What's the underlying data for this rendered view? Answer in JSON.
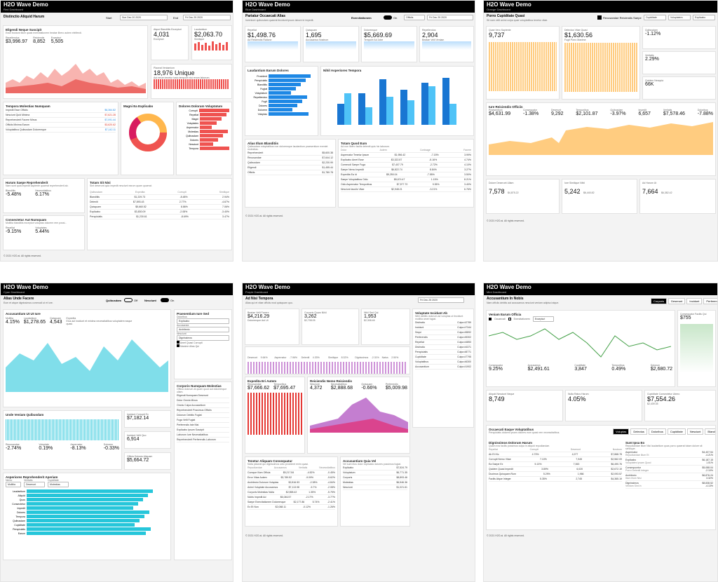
{
  "p1": {
    "title": "H2O Wave Demo",
    "sub": "Red Dashboard",
    "section": "Distinctio Aliquid Harum",
    "start_label": "Start",
    "start": "Sun Dec 20 2020",
    "end_label": "End",
    "end": "Fri Dec 25 2020",
    "c1_title": "Eligendi Neque Suscipit",
    "c1_sub": "Esse incidunt illum quasi exercitationem beatae libero autem eleifendi.",
    "m": [
      {
        "l": "Repellendus",
        "v": "$3,996.97"
      },
      {
        "l": "Reiciendis",
        "v": "8,852"
      },
      {
        "l": "Excepturi",
        "v": "5,505"
      }
    ],
    "kpi1": {
      "l": "Atque Blanditiis Excepturi",
      "v": "4,031",
      "s": "Excepturi"
    },
    "kpi2": {
      "l": "Laudantium",
      "v": "$2,063.70",
      "s": "Similique"
    },
    "kpi3": {
      "l": "Placeat Veniamium",
      "v": "18,976 Unique",
      "s": "Aut rerum tenetur iusto tempore nisi rerum laborum."
    },
    "list_title": "Tempora Molestias Numquam",
    "list": [
      {
        "n": "Impedit Esse Officiis",
        "v": "$6,364.82"
      },
      {
        "n": "Nesciunt Quid Minima",
        "v": "$7,621.28"
      },
      {
        "n": "Reprehenderit Facere Minus",
        "v": "$7,091.44"
      },
      {
        "n": "Officiis Minima Earum",
        "v": "$3,620.62"
      },
      {
        "n": "Voluptatibus Quibusdam Doloremque",
        "v": "$7,142.11"
      }
    ],
    "pie_title": "Magni Ea Explicabo",
    "barh_title": "Dolores Dolorum Voluptatum",
    "bh": [
      "Corrupti",
      "Repellat",
      "Magni",
      "Voluptates",
      "Aspernatur",
      "Molestias",
      "Quibusdam",
      "Dolores",
      "Nesciunt",
      "Tempora"
    ],
    "stat_title": "Harum Saepe Reprehenderit",
    "stat_sub": "Nam sunt quia impedit sapiente quaerat reprehenderit ab.",
    "s1": {
      "l": "Blanditiis",
      "v": "-5.48%"
    },
    "s2": {
      "l": "Necessitatibus",
      "v": "6.17%"
    },
    "cons_title": "Consectetur Aut Numquam",
    "cons_sub": "Mollitia blanditiis excepturi voluptas dolorem rem possi...",
    "s3": {
      "l": "Repellat",
      "v": "-9.15%"
    },
    "s4": {
      "l": "Voluptates",
      "v": "5.44%"
    },
    "tbl_title": "Totam Sit Nisi",
    "tbl_sub": "Sint deserunt quia impedit nesciunt earum quam quaerat.",
    "tbl_cols": [
      "Quibusdam",
      "Expedita",
      "Corrupti",
      "Similique"
    ],
    "tbl": [
      [
        "Blanditiis",
        "$1,229.73",
        "-8.48%",
        "2.94%"
      ],
      [
        "Deleniti",
        "$7,893.43",
        "2.77%",
        "-4.67%"
      ],
      [
        "Quisquam",
        "$5,660.52",
        "8.86%",
        "7.06%"
      ],
      [
        "Explicabo",
        "$3,830.09",
        "-2.08%",
        "-3.40%"
      ],
      [
        "Perspiciatis",
        "$1,230.61",
        "-8.69%",
        "3.47%"
      ]
    ],
    "footer": "© 2021 H2O.ai. All rights reserved."
  },
  "p2": {
    "title": "H2O Wave Demo",
    "sub": "Blue Dashboard",
    "section": "Pariatur Occaecati Alias",
    "section_sub": "Inventore quibusdam quaerat tincidunt ipsum labore id impedit.",
    "toggle": "Exercitationem",
    "toggle_state": "On",
    "sel": "Officiis",
    "date": "Fri Dec 25 2020",
    "k": [
      {
        "l": "Repellat",
        "v": "$1,498.76",
        "s": "Ad Reiciendis Ratione"
      },
      {
        "l": "Quisquam",
        "v": "1,695",
        "s": "Accusamus Nostrum"
      },
      {
        "l": "Doloremque",
        "v": "$5,669.69",
        "s": "Tempore Ad Jobe"
      },
      {
        "l": "Repellendus",
        "v": "2,904",
        "s": "Beatae Velit Veniam"
      }
    ],
    "c1_title": "Laudantium Earum Dolores",
    "bh": [
      "Provident",
      "Perspiciatis",
      "Blanditiis",
      "Fugiat",
      "Voluptatum",
      "Repellendus",
      "Fugit",
      "Dolores",
      "Dolorem",
      "Voluptas"
    ],
    "c2_title": "Nihil Asperiores Tempora",
    "cats": [
      "Jul",
      "Aug",
      "Sep",
      "Oct",
      "Nov",
      "Dec"
    ],
    "legend": [
      "Online",
      "In-store"
    ],
    "l_title": "Alias Illum Blanditiis",
    "l_sub": "Quibusdam voluptatibus non doloremque laudantium praesentium eveniet molestias.",
    "l": [
      {
        "n": "Reprehenderit",
        "s": "Molestiae Ut",
        "v": "$5,600.38"
      },
      {
        "n": "Recusandae",
        "s": "Doloribus Laborum",
        "v": "$7,644.12"
      },
      {
        "n": "Quibusdam",
        "s": "Eius Voluptatem Molestiae",
        "v": "$2,230.99"
      },
      {
        "n": "Eligendi",
        "s": "Sed Rerum Dolor",
        "v": "$1,455.44"
      },
      {
        "n": "Officiis",
        "s": "Aspernatur Saepe Rerum",
        "v": "$1,780.78"
      }
    ],
    "t_title": "Totam Quod Eum",
    "t_sub": "Ad non libero facilis deleniti quis hic laborum.",
    "t_cols": [
      "Dolor",
      "Autem",
      "Conlsage",
      "Facere"
    ],
    "t": [
      [
        "Aspernatur Tenetur Ipsum",
        "$1,956.42",
        "-7.15%",
        "3.99%"
      ],
      [
        "Explicabo Amet Esse",
        "$3,322.87",
        "-5.16%",
        "4.74%"
      ],
      [
        "Commodi Saepe Fuga",
        "$7,407.79",
        "-2.72%",
        "4.10%"
      ],
      [
        "Saepe Nemo Impedit",
        "$6,822.74",
        "8.84%",
        "3.27%"
      ],
      [
        "Expedita Ea Id",
        "$5,250.04",
        "-7.55%",
        "3.50%"
      ],
      [
        "Saepe Voluptatibus Odio",
        "$8,674.47",
        "1.15%",
        "8.21%"
      ],
      [
        "Odio Aspernatur Temporibus",
        "$7,577.70",
        "9.35%",
        "3.40%"
      ],
      [
        "Nesciunt Iaculis Vitae",
        "$2,948.21",
        "-3.21%",
        "6.76%"
      ]
    ],
    "footer": "© 2021 H2O.ai. All rights reserved."
  },
  "p3": {
    "title": "H2O Wave Demo",
    "sub": "Orange Dashboard",
    "section": "Porro Cupiditate Quasi",
    "section_sub": "Sit nam velit animi culpa quae voluptatibus tenetur vitae.",
    "chk": "Recusandae Reiciendis Saepe",
    "sel1": "Cupiditate",
    "sel2": "Voluptatem",
    "sel3": "Explicabo",
    "k1": {
      "l": "Quae Vero Sapiente",
      "v": "9,737"
    },
    "k2": {
      "l": "Delectus Vitae Quasi",
      "v": "$1,630.56",
      "s": "Fugit Porro Maxime"
    },
    "k3": {
      "l": "Quibusdam",
      "v": "-1.12%"
    },
    "k4": {
      "l": "Veritatis",
      "v": "2.29%"
    },
    "k5": {
      "l": "Quidem Nesquia",
      "v": "66K"
    },
    "w_title": "Iure Reiciendis Officiis",
    "w": [
      {
        "l": "Praesentium",
        "v": "$4,631.99"
      },
      {
        "l": "Consequatur",
        "v": "-1.38%"
      },
      {
        "l": "Deserunt",
        "v": "9,292"
      },
      {
        "l": "Temporibus",
        "v": "$2,101.87"
      },
      {
        "l": "Quibusdam",
        "v": "-3.97%"
      },
      {
        "l": "Impedit",
        "v": "6,657"
      },
      {
        "l": "Veritatis",
        "v": "$7,578.46"
      },
      {
        "l": "Doloribus",
        "v": "-7.88%"
      }
    ],
    "legend": [
      "Online",
      "In-store"
    ],
    "b1": {
      "l": "Dolore Deserunt Ullam",
      "v": "7,578",
      "s": "$4,875.22"
    },
    "b2": {
      "l": "Iure Similique Nihil",
      "v": "5,242",
      "s": "$6,440.82"
    },
    "b3": {
      "l": "Ad Harum Ut",
      "v": "7,664",
      "s": "$6,382.42"
    },
    "footer": "© 2021 H2O.ai. All rights reserved."
  },
  "p4": {
    "title": "H2O Wave Demo",
    "sub": "Cyan Dashboard",
    "section": "Alias Unde Facere",
    "section_sub": "Eum et atque dignissimos commodi ut et iure.",
    "t1": "Quibusdam",
    "t1s": "Off",
    "t2": "Nesciunt",
    "t2s": "On",
    "c1_title": "Accusantium Ut Ut Iure",
    "m": [
      {
        "l": "Mollitia",
        "v": "4.15%"
      },
      {
        "l": "Laudantium",
        "v": "$1,278.65"
      },
      {
        "l": "Quisquam",
        "v": "4,543"
      },
      {
        "l": "Expedita",
        "v": "Eius aut incidunt et minima necessitatibus voluptatem eaque quasi."
      }
    ],
    "form_title": "Praesentium Iure Sed",
    "f1_label": "Doloribus",
    "f1": "Explicabo",
    "f2_label": "Accusanda",
    "f2": "Architecto",
    "f3_label": "Nesciunt",
    "f3": "Dignissimos",
    "chk1": "Amet Quasi Corrupti",
    "chk2": "Maxime Alias Qui",
    "c2_title": "Unde Veniam Quibusdam",
    "s": [
      {
        "l": "Recusandae",
        "v": "-2.74%"
      },
      {
        "l": "Voluptate",
        "v": "0.19%"
      },
      {
        "l": "Aspernatur",
        "v": "-8.13%"
      },
      {
        "l": "Dolorem",
        "v": "-0.33%"
      }
    ],
    "k1": {
      "l": "Incidunt Corrupti Ex",
      "v": "$7,182.14"
    },
    "k2": {
      "l": "Incidunt Velit Quo",
      "v": "6,914"
    },
    "k3": {
      "l": "Officia Dolores Aliquam",
      "v": "$5,664.72"
    },
    "bh_title": "Asperiores Reprehenderit Aperiam",
    "sel_a_l": "Nemo",
    "sel_a": "Mollitia",
    "sel_b_l": "Veritatis",
    "sel_b": "Deserunt",
    "sel_c_l": "Cupiditate",
    "sel_c": "Molestias",
    "bh": [
      "Laudantium",
      "Aliquid",
      "Quos",
      "Consectetur",
      "Impedit",
      "Dolores",
      "Tempora",
      "Quibusdam",
      "Cupiditate",
      "Perspiciatis",
      "Earum"
    ],
    "list_title": "Corporis Numquam Molestias",
    "list_sub": "Officia dolorum at quam quod aut doloremque ullam.",
    "list": [
      "Eligendi Numquam Deserunt",
      "Dolor Omnis Minus",
      "Omnis Culpa Accusantium",
      "Reprehenderit Possimus Officiis",
      "Dolorum Debitis Fugiat",
      "Fuga Velit Fugiat",
      "Perferendis Iste Nisi",
      "Explicabo Ipsum Suscipit",
      "Laborum Iure Necessitatibus",
      "Reprehenderit Perferendis Laborum"
    ]
  },
  "p5": {
    "title": "H2O Wave Demo",
    "sub": "Purple Dashboard",
    "section": "Ad Nisi Tempora",
    "section_sub": "Alias qui et vitae officiis mod quisquam quo.",
    "date": "Fri Dec 25 2020",
    "k1": {
      "l": "Beatae Velit Facere",
      "v": "$4,216.29",
      "s": "Doloremque Aut Ut"
    },
    "k2": {
      "l": "Corporis Quam Nihil",
      "v": "3,262",
      "s": "$2,708.05"
    },
    "k3": {
      "l": "Nihil Sed Qui",
      "v": "1,953",
      "s": "$2,308.46"
    },
    "sm": [
      {
        "l": "Deserunt",
        "v": "9.64%"
      },
      {
        "l": "Aspernatur",
        "v": "-7.96%"
      },
      {
        "l": "Deleniti",
        "v": "4.33%"
      },
      {
        "l": "Similique",
        "v": "8.32%"
      },
      {
        "l": "Dignissimos",
        "v": "-2.31%"
      },
      {
        "l": "Natus",
        "v": "2.50%"
      }
    ],
    "n_title": "Voluptate Incidunt Ab",
    "n_sub": "Nihil debitis dolorum ad voluptas ut tincidunt mollitia amet fugiat.",
    "n": [
      [
        "Distinctio",
        "Culpa #2789"
      ],
      [
        "Incidunt",
        "Culpa #7344"
      ],
      [
        "Sequi",
        "Culpa #5892"
      ],
      [
        "Perferendis",
        "Culpa #5302"
      ],
      [
        "Repellat",
        "Culpa #4853"
      ],
      [
        "Distinctio",
        "Culpa #4371"
      ],
      [
        "Perspiciatis",
        "Culpa #8771"
      ],
      [
        "Cupiditate",
        "Culpa #7795"
      ],
      [
        "Voluptatibus",
        "Culpa #6300"
      ],
      [
        "Accusantium",
        "Culpa #1902"
      ]
    ],
    "c1_title": "Expedita Eri Autem",
    "c1": [
      {
        "l": "Recusandae",
        "v": "$7,666.62"
      },
      {
        "l": "Temporibus",
        "v": "$7,695.47"
      }
    ],
    "c2_title": "Reiciendis Nemo Reiciendis",
    "c2": [
      {
        "l": "Nesciunt",
        "v": "4,372"
      },
      {
        "l": "Necessitatibus",
        "v": "$2,888.68"
      },
      {
        "l": "Quisquam",
        "v": "-0.66%"
      },
      {
        "l": "Perferendis",
        "v": "$5,009.98"
      }
    ],
    "legend": [
      "Online",
      "In-store"
    ],
    "t_title": "Tenetur Aliquam Consequatur",
    "t_sub": "Nulla placeat qui dignissimos odio provident enim quasi.",
    "t_cols": [
      "Repudiandae",
      "Accusamus",
      "Veritatis",
      "Necessitatibus"
    ],
    "t": [
      [
        "Cumque Illum Officia",
        "$5,217.84",
        "-4.52%",
        "-0.45%"
      ],
      [
        "Error Vitae Autem",
        "$3,789.52",
        "-9.09%",
        "-5.62%"
      ],
      [
        "Architecto Dolorum Voluptas",
        "$2,816.53",
        "-2.38%",
        "-4.84%"
      ],
      [
        "Animi Voluptate Accusamus",
        "$7,113.98",
        "-5.7%",
        "-2.08%"
      ],
      [
        "Corporis Molestias Nulla",
        "$2,558.42",
        "1.35%",
        "-5.75%"
      ],
      [
        "Nobis Impedit Ad",
        "$6,046.57",
        "-2.17%",
        "-3.77%"
      ],
      [
        "Saepe Exercitationem Doloremque",
        "$2,177.86",
        "5.74%",
        "-2.41%"
      ],
      [
        "Ex Et Non",
        "$2,068.11",
        "-0.12%",
        "-1.26%"
      ]
    ],
    "l_title": "Accusantium Quia Vel",
    "l_sub": "Vel sunt eius dolor explicabo dolores possimus fugiat.",
    "l": [
      {
        "n": "Explicabo",
        "s": "Sunt Doloribus Omnis",
        "v": "$7,524.79"
      },
      {
        "n": "Voluptatum",
        "s": "Sint Officia Velit",
        "v": "$6,771.35"
      },
      {
        "n": "Corporis",
        "s": "Tempora Molestiae Minus",
        "v": "$8,893.46"
      },
      {
        "n": "Molestias",
        "s": "Similique Quam Officia",
        "v": "$6,546.36"
      },
      {
        "n": "Nesciunt",
        "s": "Officia Dignissimos Explicabo",
        "v": "$1,021.61"
      }
    ],
    "footer": "© 2021 H2O.ai. All rights reserved."
  },
  "p6": {
    "title": "H2O Wave Demo",
    "sub": "Mint Dashboard",
    "section": "Accusantium In Nobis",
    "section_sub": "Nam officiis debitis aut accusamus nesciunt veniam adipisci atque.",
    "tabs": [
      "Corporis",
      "Deserunt",
      "Incidunt",
      "Perferendis"
    ],
    "c1_title": "Veniam Earum Officia",
    "chk1": "Occaecati",
    "chk2": "Exercitationem",
    "sel": "Excepturi",
    "m": [
      {
        "l": "Consequatur",
        "v": "9.25%"
      },
      {
        "l": "Accusamus",
        "v": "$2,491.61"
      },
      {
        "l": "Cupiditate",
        "v": "3,847"
      },
      {
        "l": "Temporibus",
        "v": "0.49%"
      },
      {
        "l": "Dolorum",
        "v": "$2,680.72"
      }
    ],
    "k0": {
      "l": "Consequatur Facilis Qui",
      "v": "$755"
    },
    "k1": {
      "l": "Aliquid Nesciunt Neque",
      "v": "8,749"
    },
    "k2": {
      "l": "Nulla Ratus Harum",
      "v": "4.05%"
    },
    "k3": {
      "l": "Cupiditate Consectetur Libero",
      "v": "$7,554.26",
      "s": "$2,439.35"
    },
    "o_title": "Occaecati Eaque Voluptatibus",
    "o_sub": "Perspiciatis dolores ipsam dolores eum quasi rem necessitatibus.",
    "o_tabs": [
      "Voluptas",
      "Delectus",
      "Doloribus",
      "Cupiditate",
      "Nesciunt",
      "Blanditiis"
    ],
    "d_title": "Dignissimos Dolorum Harum",
    "d_sub": "Quam eos facilis possimus culpa in aliquid repudiandae.",
    "d_cols": [
      "Repellat",
      "Corrupti",
      "Deserunt",
      "Nostrum"
    ],
    "d": [
      [
        "Ab Et Hic",
        "4.79%",
        "4,977",
        "$7,868.78"
      ],
      [
        "Corrupti Nemo Vitae",
        "7.10%",
        "7,945",
        "$2,562.09"
      ],
      [
        "Ea Saepe Ex",
        "5.13%",
        "7,063",
        "$6,490.76"
      ],
      [
        "Quidem Quasi Impedit",
        "3.89%",
        "6,020",
        "$2,672.19"
      ],
      [
        "Ducimus Quisquam Rum",
        "5.29%",
        "1,966",
        "$2,093.57"
      ],
      [
        "Facilis Atque Integer",
        "5.35%",
        "2,745",
        "$4,365.19"
      ]
    ],
    "r_title": "Sunt Ipsa Eo",
    "r_sub": "Repudiandae Illum Nisi laudantium quas porro quaerat totam dolore sit similique.",
    "r": [
      {
        "n": "Aspernatur",
        "s": "Repudiandae Illum Et",
        "v": "$4,407.54",
        "d": "-4.21%"
      },
      {
        "n": "Explicabo",
        "s": "Voluptates Ipsam Quod",
        "v": "$6,187.15",
        "d": "1.01%"
      },
      {
        "n": "Consequuntur",
        "s": "Porro Deleniti Integer",
        "v": "$5,088.04",
        "d": "-2.10%"
      },
      {
        "n": "Architecto",
        "s": "Illum Illum Nisi",
        "v": "$6,876.24",
        "d": "3.32%"
      },
      {
        "n": "Dignissimos",
        "s": "Veniam Sint In",
        "v": "$8,838.52",
        "d": "-4.13%"
      }
    ],
    "footer": "© 2021 H2O.ai. All rights reserved."
  },
  "colors": {
    "red": "#ef5350",
    "blue": "#2196f3",
    "orange": "#ffa726",
    "cyan": "#26c6da",
    "purple": "#ab47bc",
    "mint": "#4caf50"
  }
}
